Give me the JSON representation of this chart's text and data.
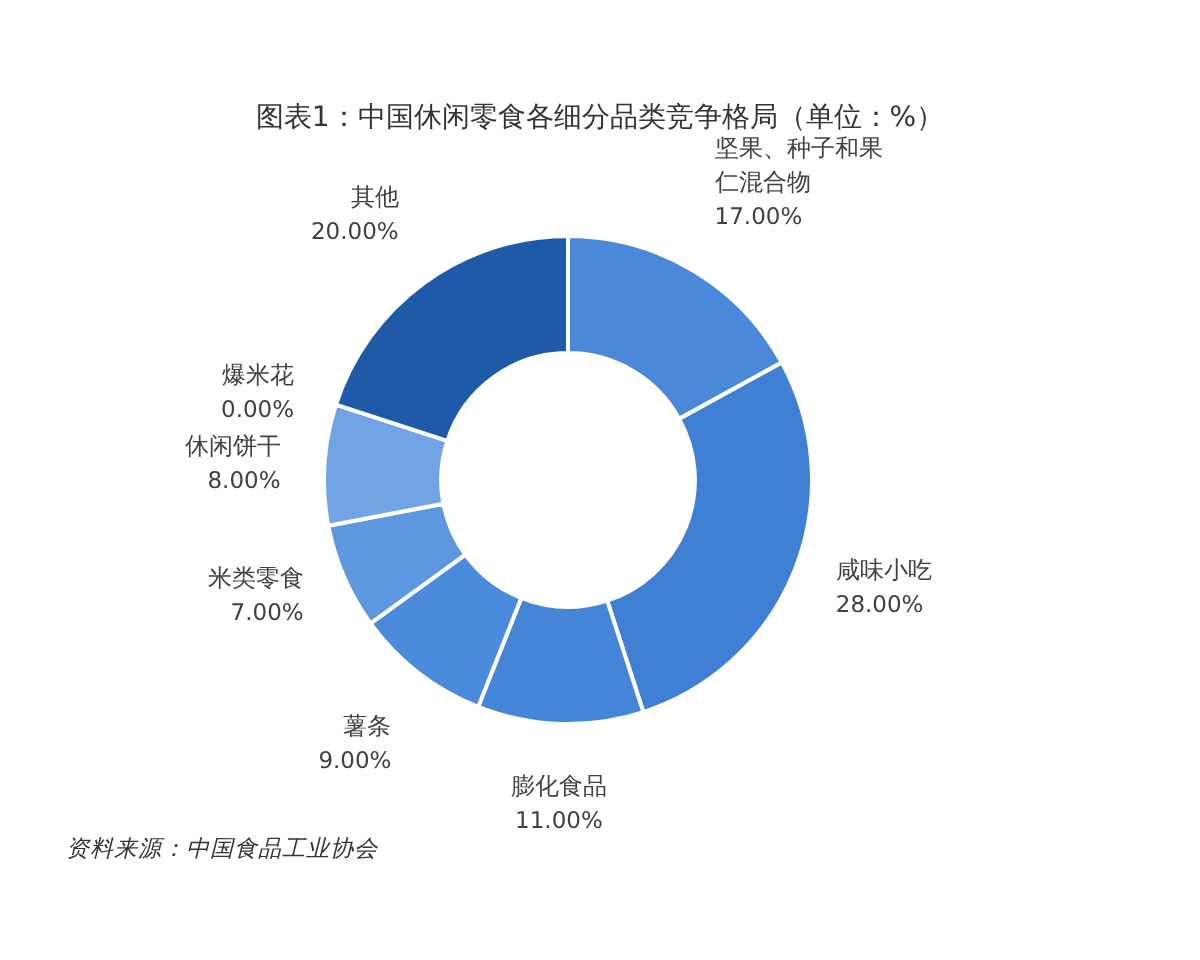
{
  "chart_data": {
    "type": "donut",
    "title": "图表1：中国休闲零食各细分品类竞争格局（单位：%）",
    "categories": [
      "坚果、种子和果仁混合物",
      "咸味小吃",
      "膨化食品",
      "薯条",
      "米类零食",
      "休闲饼干",
      "爆米花",
      "其他"
    ],
    "values": [
      17,
      28,
      11,
      9,
      7,
      8,
      0,
      20
    ],
    "colors": [
      "#4a88da",
      "#3f7fd4",
      "#4485d8",
      "#4b8bdc",
      "#5c97e0",
      "#70a4e5",
      null,
      "#1f5aa8"
    ],
    "value_labels": [
      "17.00%",
      "28.00%",
      "11.00%",
      "9.00%",
      "7.00%",
      "8.00%",
      "0.00%",
      "20.00%"
    ],
    "annotations": [
      "资料来源：中国食品工业协会"
    ]
  }
}
